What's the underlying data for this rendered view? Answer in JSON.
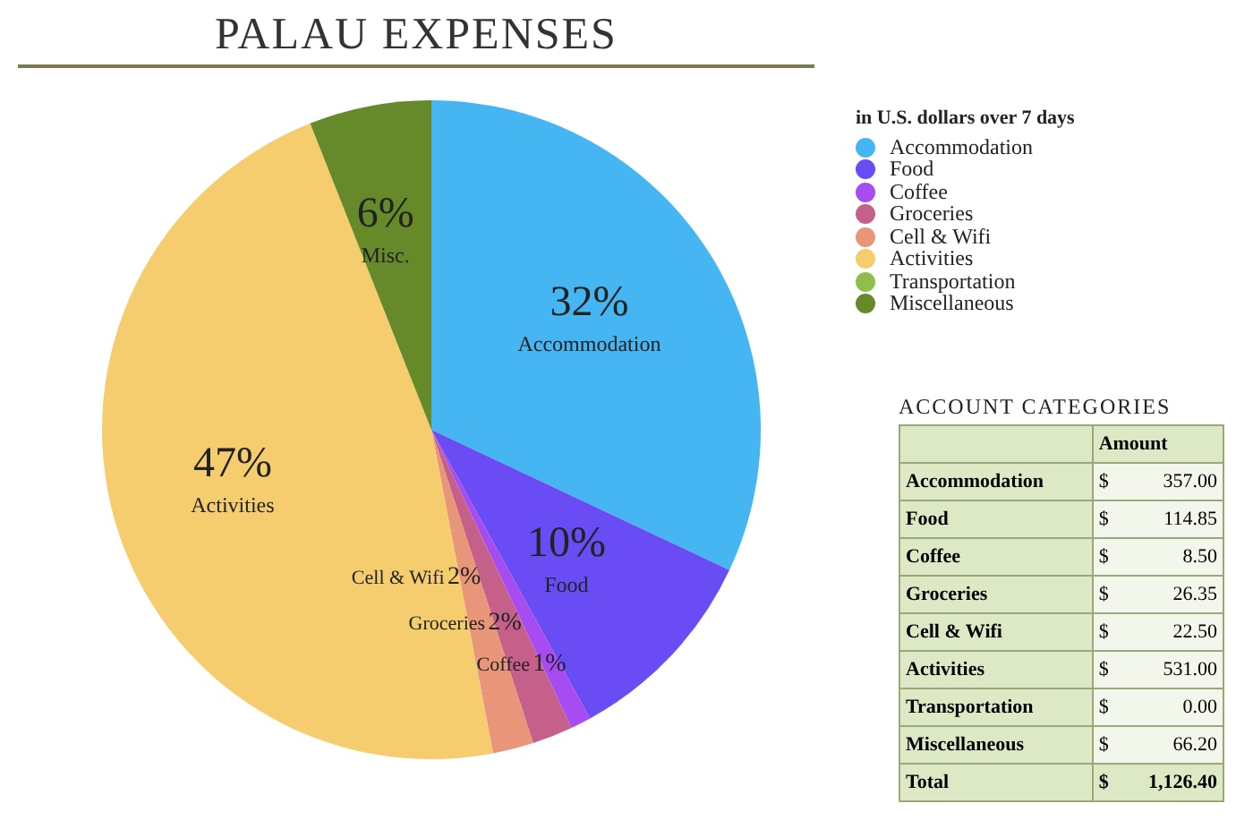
{
  "chart_data": [
    {
      "type": "pie",
      "title": "PALAU EXPENSES",
      "legend_title": "in U.S. dollars over 7 days",
      "legend": "top right",
      "categories": [
        "Accommodation",
        "Food",
        "Coffee",
        "Groceries",
        "Cell & Wifi",
        "Activities",
        "Transportation",
        "Miscellaneous"
      ],
      "values": [
        32,
        10,
        1,
        2,
        2,
        47,
        0,
        6
      ],
      "colors": [
        "#45b6f2",
        "#6a4cf5",
        "#a64cf0",
        "#c4608a",
        "#e8957a",
        "#f5cd6e",
        "#8fbf4a",
        "#668a2a"
      ],
      "value_labels": [
        "32%",
        "10%",
        "1%",
        "2%",
        "2%",
        "47%",
        null,
        "6%"
      ],
      "annotations": [
        {
          "text": "Accommodation",
          "x": "Accommodation"
        },
        {
          "text": "Food",
          "x": "Food"
        },
        {
          "text": "Coffee",
          "x": "Coffee"
        },
        {
          "text": "Groceries",
          "x": "Groceries"
        },
        {
          "text": "Cell & Wifi",
          "x": "Cell & Wifi"
        },
        {
          "text": "Activities",
          "x": "Activities"
        },
        {
          "text": "Misc.",
          "x": "Miscellaneous"
        }
      ]
    },
    {
      "type": "other",
      "title": "ACCOUNT CATEGORIES",
      "categories": [
        "Accommodation",
        "Food",
        "Coffee",
        "Groceries",
        "Cell & Wifi",
        "Activities",
        "Transportation",
        "Miscellaneous"
      ],
      "value_labels": [
        "357.00",
        "114.85",
        "8.50",
        "26.35",
        "22.50",
        "531.00",
        "0.00",
        "66.20"
      ],
      "totals": [
        "1,126.40"
      ],
      "annotations": [
        "Amount",
        "Total",
        "$"
      ]
    }
  ]
}
